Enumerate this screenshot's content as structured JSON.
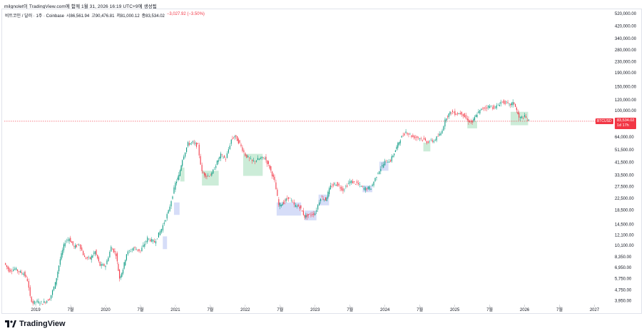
{
  "credit": "milgnolet이 TradingView.com에 함께 1월 31, 2026 16:19 UTC+9에 생성됨",
  "legend": {
    "symbol": "비트코인 / 달러 · 1주 · Coinbase",
    "open": "시86,561.94",
    "high": "고90,476.81",
    "low": "저81,000.12",
    "close": "종83,534.02",
    "change": "−3,027.92 (−3.50%)"
  },
  "price_tag": {
    "ticker": "BTCUSD",
    "last": "83,534.02",
    "countdown": "1d 17h"
  },
  "brand": {
    "name": "TradingView",
    "colors": {
      "bg": "#131722"
    }
  },
  "colors": {
    "up": "#089981",
    "down": "#f23645",
    "line": "#131722",
    "grid": "#e0e3eb",
    "highlight_green": "#b7e4c7",
    "highlight_blue": "#c5cef5"
  },
  "chart_data": {
    "type": "line",
    "scale": "log",
    "title": "",
    "xlabel": "",
    "ylabel": "",
    "y_ticks": [
      "3,950.00",
      "4,750.00",
      "5,750.00",
      "6,950.00",
      "8,350.00",
      "10,100.00",
      "12,100.00",
      "14,500.00",
      "18,500.00",
      "22,500.00",
      "27,500.00",
      "33,500.00",
      "41,500.00",
      "51,500.00",
      "64,000.00",
      "100,000.00",
      "120,000.00",
      "150,000.00",
      "190,000.00",
      "230,000.00",
      "280,000.00",
      "340,000.00",
      "420,000.00",
      "520,000.00"
    ],
    "y_tick_values": [
      3950,
      4750,
      5750,
      6950,
      8350,
      10100,
      12100,
      14500,
      18500,
      22500,
      27500,
      33500,
      41500,
      51500,
      64000,
      100000,
      120000,
      150000,
      190000,
      230000,
      280000,
      340000,
      420000,
      520000
    ],
    "x_ticks": [
      "2019",
      "7월",
      "2020",
      "7월",
      "2021",
      "7월",
      "2022",
      "7월",
      "2023",
      "7월",
      "2024",
      "7월",
      "2025",
      "7월",
      "2026",
      "7월",
      "2027"
    ],
    "x_tick_values": [
      2019.0,
      2019.5,
      2020.0,
      2020.5,
      2021.0,
      2021.5,
      2022.0,
      2022.5,
      2023.0,
      2023.5,
      2024.0,
      2024.5,
      2025.0,
      2025.5,
      2026.0,
      2026.5,
      2027.0
    ],
    "ylim": [
      3700,
      560000
    ],
    "xlim": [
      2018.55,
      2027.25
    ],
    "series": [
      {
        "x": [
          2018.55,
          2018.62,
          2018.7,
          2018.78,
          2018.83,
          2018.88,
          2018.92,
          2018.96,
          2019.0,
          2019.1,
          2019.2,
          2019.28,
          2019.35,
          2019.42,
          2019.48,
          2019.55,
          2019.62,
          2019.7,
          2019.78,
          2019.85,
          2019.92,
          2020.0,
          2020.08,
          2020.15,
          2020.2,
          2020.25,
          2020.3,
          2020.4,
          2020.5,
          2020.6,
          2020.7,
          2020.8,
          2020.9,
          2021.0,
          2021.05,
          2021.1,
          2021.18,
          2021.25,
          2021.32,
          2021.38,
          2021.45,
          2021.52,
          2021.58,
          2021.65,
          2021.72,
          2021.8,
          2021.85,
          2021.92,
          2022.0,
          2022.1,
          2022.2,
          2022.28,
          2022.35,
          2022.42,
          2022.48,
          2022.55,
          2022.62,
          2022.7,
          2022.78,
          2022.85,
          2022.92,
          2023.0,
          2023.08,
          2023.15,
          2023.22,
          2023.3,
          2023.4,
          2023.5,
          2023.6,
          2023.7,
          2023.8,
          2023.9,
          2024.0,
          2024.08,
          2024.15,
          2024.22,
          2024.3,
          2024.4,
          2024.5,
          2024.6,
          2024.7,
          2024.8,
          2024.88,
          2024.95,
          2025.02,
          2025.1,
          2025.18,
          2025.25,
          2025.32,
          2025.4,
          2025.5,
          2025.58,
          2025.66,
          2025.72,
          2025.78,
          2025.85,
          2025.92,
          2026.0,
          2026.06
        ],
        "y": [
          7500,
          6600,
          6800,
          6400,
          6300,
          5600,
          4200,
          3800,
          3900,
          3800,
          4100,
          5300,
          8000,
          10800,
          11400,
          9800,
          10400,
          8200,
          8100,
          9100,
          7200,
          7200,
          9800,
          8700,
          5800,
          6800,
          8800,
          9700,
          9200,
          11400,
          10700,
          13400,
          18000,
          29000,
          33000,
          44000,
          57000,
          58000,
          55000,
          35000,
          33000,
          34000,
          40000,
          47000,
          44000,
          61000,
          65000,
          57000,
          47000,
          42000,
          44000,
          45000,
          38000,
          30000,
          20000,
          21000,
          23000,
          20000,
          19500,
          16500,
          17000,
          17500,
          23000,
          22000,
          27500,
          29000,
          26000,
          30000,
          29000,
          26500,
          27000,
          35000,
          42000,
          43000,
          51000,
          62000,
          70000,
          64000,
          63000,
          59000,
          60000,
          68000,
          90000,
          98000,
          95000,
          96000,
          85000,
          82000,
          95000,
          104000,
          108000,
          105000,
          116000,
          115000,
          110000,
          114000,
          88000,
          90000,
          83534
        ]
      }
    ]
  }
}
